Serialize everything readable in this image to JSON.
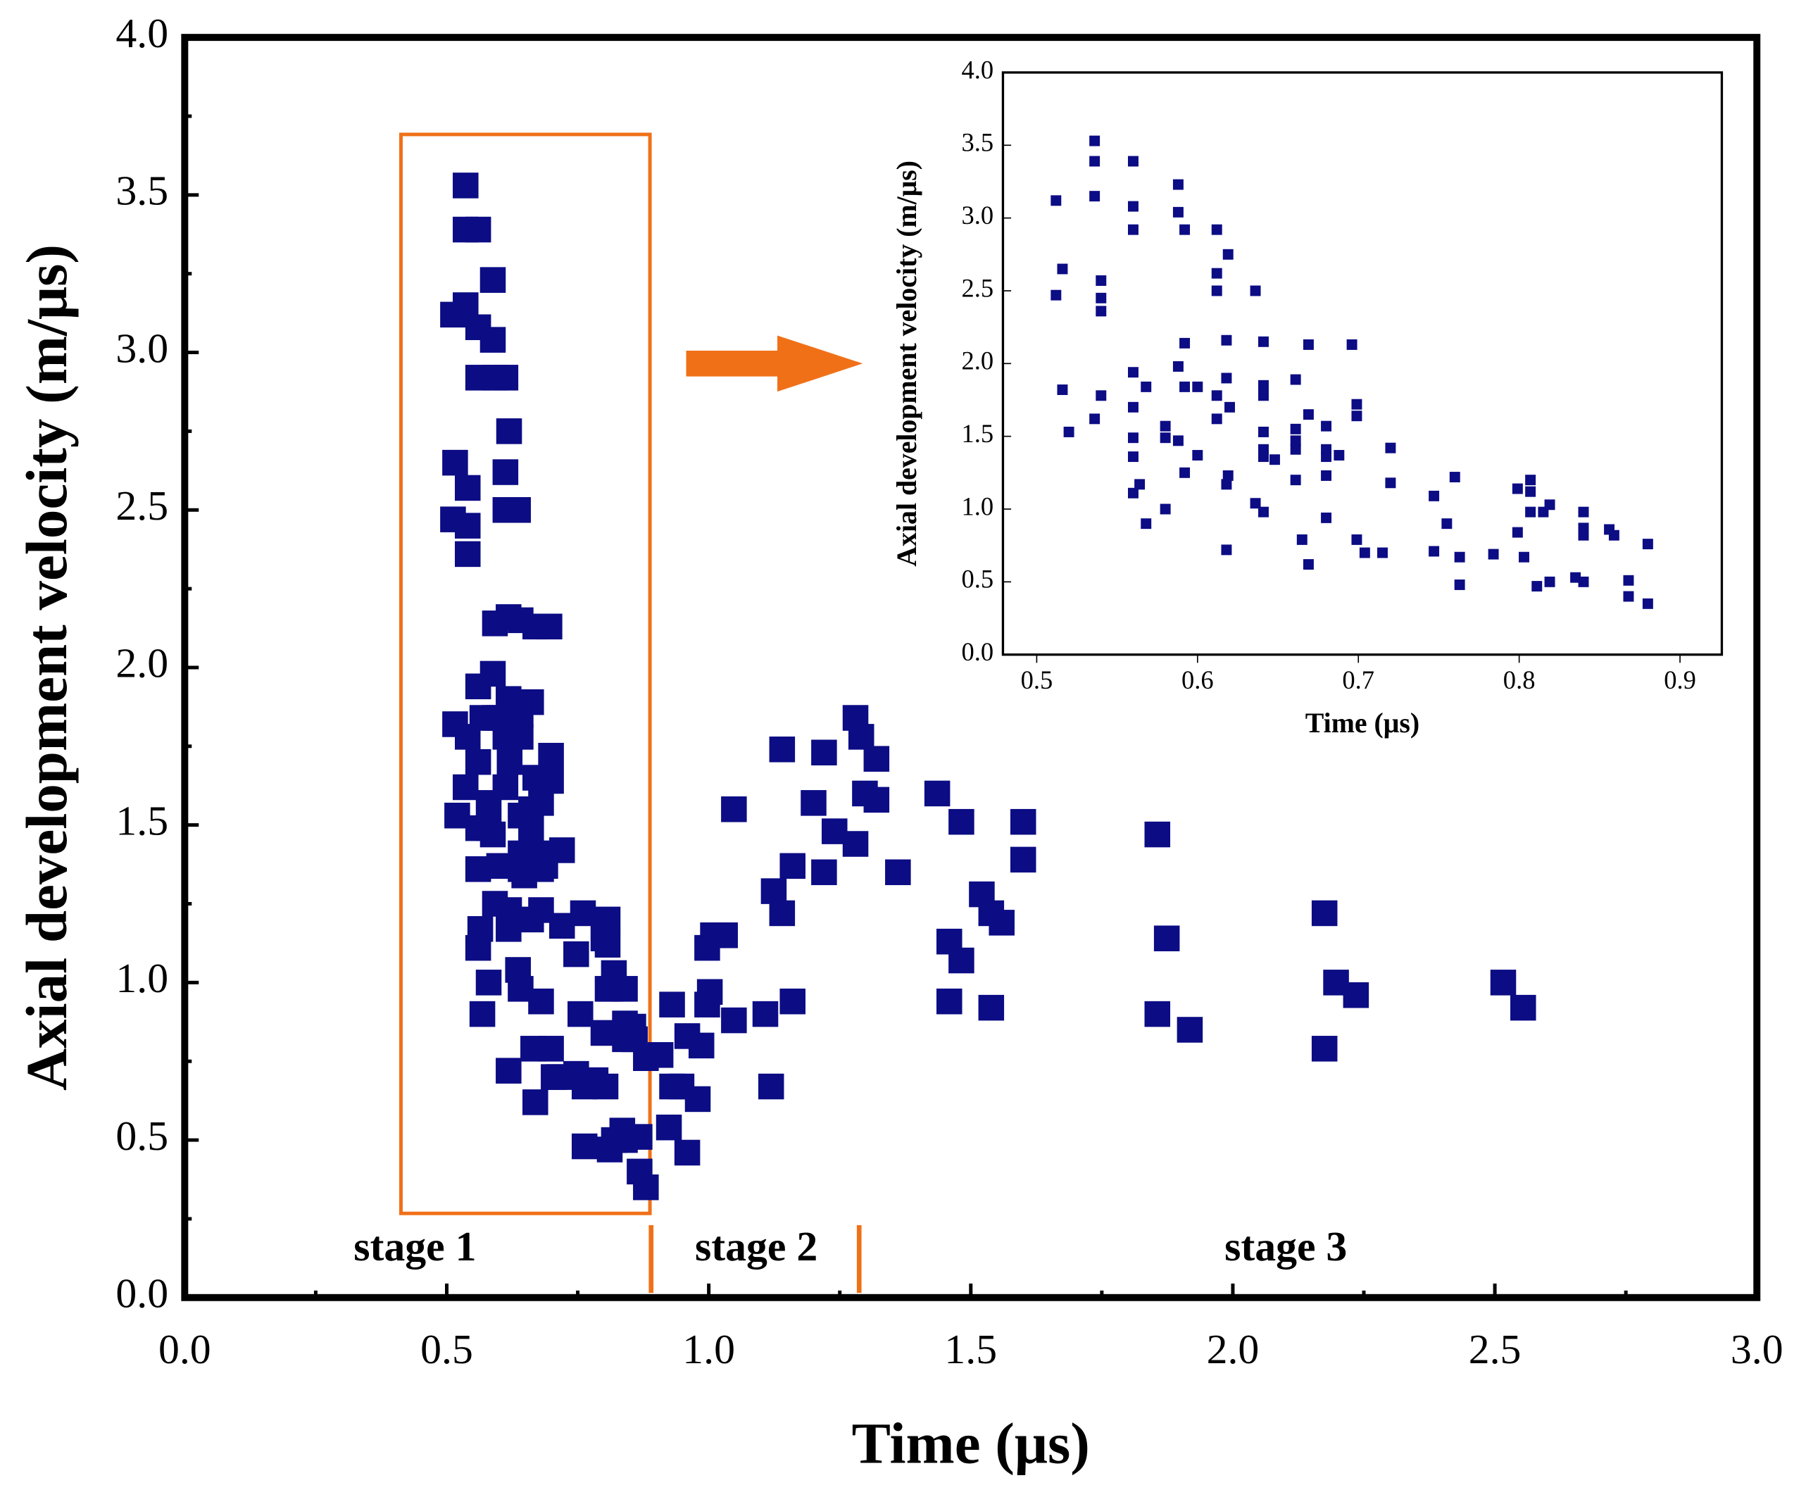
{
  "chart_data": [
    {
      "type": "scatter",
      "xlabel": "Time (μs)",
      "ylabel": "Axial development velocity (m/μs)",
      "annotations": [
        "stage 1",
        "stage 2",
        "stage 3"
      ],
      "color": "#0c0c85",
      "xlim": [
        0,
        3
      ],
      "ylim": [
        0,
        4
      ],
      "xticks": [
        {
          "value": 0,
          "label": "0.0"
        },
        0.5,
        {
          "value": 1,
          "label": "1.0"
        },
        1.5,
        {
          "value": 2,
          "label": "2.0"
        },
        2.5,
        {
          "value": 3,
          "label": "3.0"
        }
      ],
      "yticks": [
        {
          "value": 0,
          "label": "0.0"
        },
        0.5,
        {
          "value": 1,
          "label": "1.0"
        },
        1.5,
        {
          "value": 2,
          "label": "2.0"
        },
        2.5,
        {
          "value": 3,
          "label": "3.0"
        },
        3.5,
        {
          "value": 4,
          "label": "4.0"
        }
      ],
      "x": [
        0.512,
        0.516,
        0.512,
        0.536,
        0.536,
        0.536,
        0.54,
        0.54,
        0.54,
        0.56,
        0.56,
        0.56,
        0.588,
        0.588,
        0.592,
        0.612,
        0.619,
        0.612,
        0.612,
        0.636,
        0.516,
        0.52,
        0.54,
        0.536,
        0.56,
        0.56,
        0.568,
        0.56,
        0.56,
        0.564,
        0.56,
        0.568,
        0.58,
        0.58,
        0.58,
        0.592,
        0.592,
        0.588,
        0.588,
        0.592,
        0.6,
        0.6,
        0.618,
        0.618,
        0.612,
        0.612,
        0.62,
        0.619,
        0.618,
        0.618,
        0.641,
        0.641,
        0.641,
        0.641,
        0.641,
        0.641,
        0.648,
        0.636,
        0.641,
        0.661,
        0.661,
        0.661,
        0.661,
        0.661,
        0.669,
        0.669,
        0.665,
        0.669,
        0.68,
        0.68,
        0.68,
        0.68,
        0.68,
        0.688,
        0.696,
        0.699,
        0.699,
        0.699,
        0.704,
        0.715,
        0.72,
        0.72,
        0.747,
        0.755,
        0.76,
        0.763,
        0.747,
        0.763,
        0.784,
        0.799,
        0.807,
        0.807,
        0.799,
        0.807,
        0.803,
        0.811,
        0.815,
        0.819,
        0.819,
        0.835,
        0.84,
        0.84,
        0.84,
        0.84,
        0.856,
        0.859,
        0.868,
        0.868,
        0.88,
        0.88,
        0.908,
        0.93,
        0.93,
        0.924,
        0.959,
        0.959,
        0.948,
        0.979,
        0.986,
        0.997,
        0.997,
        1.008,
        1.031,
        1.002,
        1.048,
        1.048,
        1.108,
        1.119,
        1.124,
        1.14,
        1.16,
        1.16,
        1.14,
        1.2,
        1.22,
        1.22,
        1.24,
        1.28,
        1.28,
        1.291,
        1.298,
        1.32,
        1.32,
        1.361,
        1.436,
        1.459,
        1.459,
        1.482,
        1.482,
        1.521,
        1.539,
        1.539,
        1.559,
        1.6,
        1.6,
        1.856,
        1.856,
        1.874,
        1.918,
        2.175,
        2.175,
        2.197,
        2.235,
        2.516,
        2.554
      ],
      "values": [
        3.12,
        2.65,
        2.47,
        3.53,
        3.39,
        3.15,
        2.57,
        2.45,
        2.36,
        3.39,
        3.08,
        2.92,
        3.23,
        3.04,
        2.92,
        2.92,
        2.75,
        2.62,
        2.5,
        2.5,
        1.82,
        1.53,
        1.78,
        1.62,
        1.94,
        1.7,
        1.84,
        1.49,
        1.36,
        1.17,
        1.11,
        0.9,
        1.57,
        1.49,
        1.0,
        2.14,
        1.84,
        1.98,
        1.47,
        1.25,
        1.84,
        1.37,
        2.16,
        1.9,
        1.78,
        1.62,
        1.7,
        1.23,
        1.17,
        0.72,
        2.15,
        1.85,
        1.78,
        1.53,
        1.41,
        1.36,
        1.34,
        1.04,
        0.98,
        1.89,
        1.55,
        1.47,
        1.41,
        1.2,
        2.13,
        1.65,
        0.79,
        0.62,
        1.57,
        1.41,
        1.36,
        1.23,
        0.94,
        1.37,
        2.13,
        1.72,
        1.64,
        0.79,
        0.7,
        0.7,
        1.42,
        1.18,
        1.09,
        0.9,
        1.22,
        0.48,
        0.71,
        0.67,
        0.69,
        1.14,
        1.2,
        1.12,
        0.84,
        0.98,
        0.67,
        0.47,
        0.98,
        1.03,
        0.5,
        0.53,
        0.98,
        0.87,
        0.82,
        0.5,
        0.86,
        0.82,
        0.51,
        0.4,
        0.35,
        0.76,
        0.77,
        0.67,
        0.93,
        0.54,
        0.46,
        0.83,
        0.67,
        0.63,
        0.8,
        0.93,
        1.11,
        1.15,
        1.15,
        0.97,
        0.88,
        1.55,
        0.9,
        0.67,
        1.29,
        1.22,
        1.37,
        0.94,
        1.74,
        1.57,
        1.35,
        1.73,
        1.48,
        1.44,
        1.84,
        1.78,
        1.6,
        1.71,
        1.58,
        1.35,
        1.6,
        1.13,
        0.94,
        1.07,
        1.51,
        1.28,
        0.92,
        1.22,
        1.19,
        1.51,
        1.39,
        1.47,
        0.9,
        1.14,
        0.85,
        1.22,
        0.79,
        1.0,
        0.96,
        1.0,
        0.92
      ]
    },
    {
      "type": "scatter",
      "xlabel": "Time (μs)",
      "ylabel": "Axial development velocity (m/μs)",
      "color": "#0c0c85",
      "xlim": [
        0.479,
        0.926
      ],
      "ylim": [
        0,
        4
      ],
      "xticks": [
        0.5,
        0.6,
        0.7,
        0.8,
        0.9
      ],
      "yticks": [
        {
          "value": 0,
          "label": "0.0"
        },
        0.5,
        {
          "value": 1,
          "label": "1.0"
        },
        1.5,
        {
          "value": 2,
          "label": "2.0"
        },
        2.5,
        {
          "value": 3,
          "label": "3.0"
        },
        3.5,
        {
          "value": 4,
          "label": "4.0"
        }
      ],
      "x": [
        0.512,
        0.516,
        0.512,
        0.536,
        0.536,
        0.536,
        0.54,
        0.54,
        0.54,
        0.56,
        0.56,
        0.56,
        0.588,
        0.588,
        0.592,
        0.612,
        0.619,
        0.612,
        0.612,
        0.636,
        0.516,
        0.52,
        0.54,
        0.536,
        0.56,
        0.56,
        0.568,
        0.56,
        0.56,
        0.564,
        0.56,
        0.568,
        0.58,
        0.58,
        0.58,
        0.592,
        0.592,
        0.588,
        0.588,
        0.592,
        0.6,
        0.6,
        0.618,
        0.618,
        0.612,
        0.612,
        0.62,
        0.619,
        0.618,
        0.618,
        0.641,
        0.641,
        0.641,
        0.641,
        0.641,
        0.641,
        0.648,
        0.636,
        0.641,
        0.661,
        0.661,
        0.661,
        0.661,
        0.661,
        0.669,
        0.669,
        0.665,
        0.669,
        0.68,
        0.68,
        0.68,
        0.68,
        0.68,
        0.688,
        0.696,
        0.699,
        0.699,
        0.699,
        0.704,
        0.715,
        0.72,
        0.72,
        0.747,
        0.755,
        0.76,
        0.763,
        0.747,
        0.763,
        0.784,
        0.799,
        0.807,
        0.807,
        0.799,
        0.807,
        0.803,
        0.811,
        0.815,
        0.819,
        0.819,
        0.835,
        0.84,
        0.84,
        0.84,
        0.84,
        0.856,
        0.859,
        0.868,
        0.868,
        0.88,
        0.88
      ],
      "values": [
        3.12,
        2.65,
        2.47,
        3.53,
        3.39,
        3.15,
        2.57,
        2.45,
        2.36,
        3.39,
        3.08,
        2.92,
        3.23,
        3.04,
        2.92,
        2.92,
        2.75,
        2.62,
        2.5,
        2.5,
        1.82,
        1.53,
        1.78,
        1.62,
        1.94,
        1.7,
        1.84,
        1.49,
        1.36,
        1.17,
        1.11,
        0.9,
        1.57,
        1.49,
        1.0,
        2.14,
        1.84,
        1.98,
        1.47,
        1.25,
        1.84,
        1.37,
        2.16,
        1.9,
        1.78,
        1.62,
        1.7,
        1.23,
        1.17,
        0.72,
        2.15,
        1.85,
        1.78,
        1.53,
        1.41,
        1.36,
        1.34,
        1.04,
        0.98,
        1.89,
        1.55,
        1.47,
        1.41,
        1.2,
        2.13,
        1.65,
        0.79,
        0.62,
        1.57,
        1.41,
        1.36,
        1.23,
        0.94,
        1.37,
        2.13,
        1.72,
        1.64,
        0.79,
        0.7,
        0.7,
        1.42,
        1.18,
        1.09,
        0.9,
        1.22,
        0.48,
        0.71,
        0.67,
        0.69,
        1.14,
        1.2,
        1.12,
        0.84,
        0.98,
        0.67,
        0.47,
        0.98,
        1.03,
        0.5,
        0.53,
        0.98,
        0.87,
        0.82,
        0.5,
        0.86,
        0.82,
        0.51,
        0.4,
        0.35,
        0.76
      ]
    }
  ]
}
